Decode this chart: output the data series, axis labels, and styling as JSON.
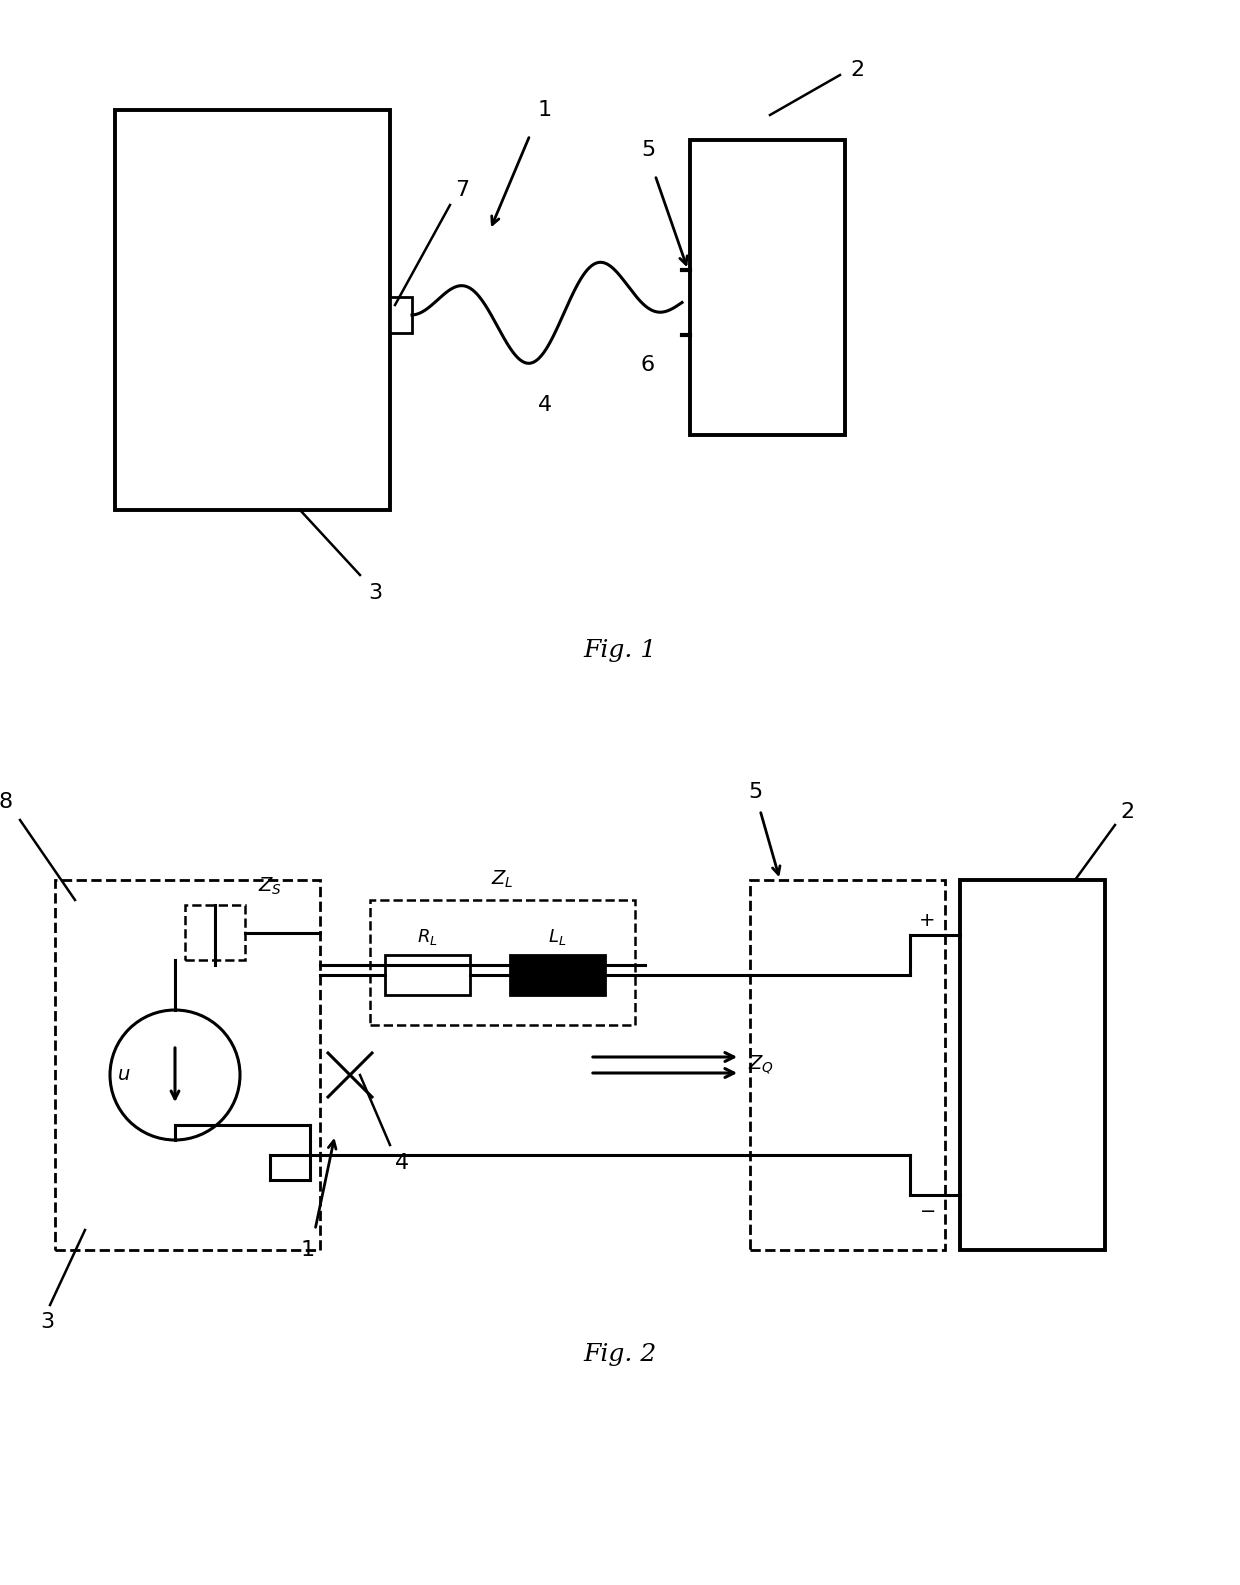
{
  "fig_width": 12.4,
  "fig_height": 15.85,
  "bg_color": "#ffffff",
  "line_color": "#000000"
}
